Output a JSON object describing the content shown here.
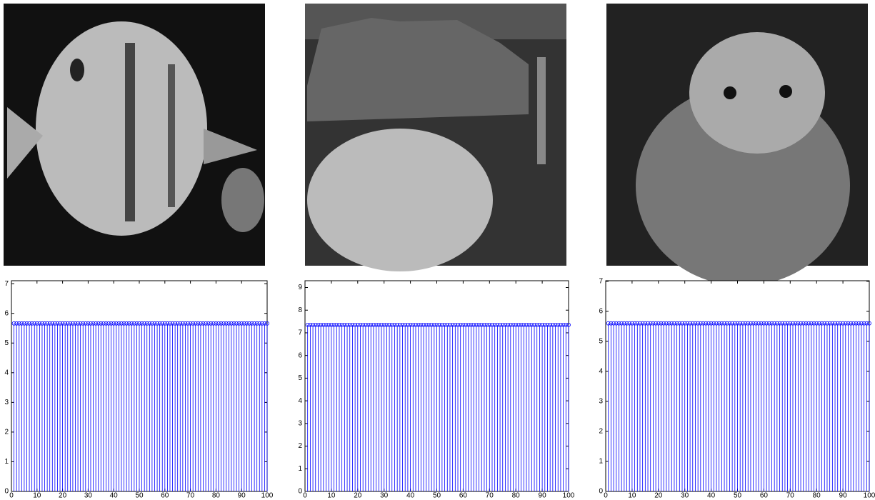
{
  "chart_data": [
    {
      "type": "stem",
      "color": "#0000ff",
      "x": [
        1,
        2,
        3,
        4,
        5,
        6,
        7,
        8,
        9,
        10,
        11,
        12,
        13,
        14,
        15,
        16,
        17,
        18,
        19,
        20,
        21,
        22,
        23,
        24,
        25,
        26,
        27,
        28,
        29,
        30,
        31,
        32,
        33,
        34,
        35,
        36,
        37,
        38,
        39,
        40,
        41,
        42,
        43,
        44,
        45,
        46,
        47,
        48,
        49,
        50,
        51,
        52,
        53,
        54,
        55,
        56,
        57,
        58,
        59,
        60,
        61,
        62,
        63,
        64,
        65,
        66,
        67,
        68,
        69,
        70,
        71,
        72,
        73,
        74,
        75,
        76,
        77,
        78,
        79,
        80,
        81,
        82,
        83,
        84,
        85,
        86,
        87,
        88,
        89,
        90,
        91,
        92,
        93,
        94,
        95,
        96,
        97,
        98,
        99,
        100
      ],
      "values": [
        5.66,
        5.66,
        5.66,
        5.66,
        5.66,
        5.66,
        5.66,
        5.66,
        5.66,
        5.66,
        5.66,
        5.66,
        5.66,
        5.66,
        5.66,
        5.66,
        5.66,
        5.66,
        5.66,
        5.66,
        5.66,
        5.66,
        5.66,
        5.66,
        5.66,
        5.66,
        5.66,
        5.66,
        5.66,
        5.66,
        5.66,
        5.66,
        5.66,
        5.66,
        5.66,
        5.66,
        5.66,
        5.66,
        5.66,
        5.66,
        5.66,
        5.66,
        5.66,
        5.66,
        5.66,
        5.66,
        5.66,
        5.66,
        5.66,
        5.66,
        5.66,
        5.66,
        5.66,
        5.66,
        5.66,
        5.66,
        5.66,
        5.66,
        5.66,
        5.66,
        5.66,
        5.66,
        5.66,
        5.66,
        5.66,
        5.66,
        5.66,
        5.66,
        5.66,
        5.66,
        5.66,
        5.66,
        5.66,
        5.66,
        5.66,
        5.66,
        5.66,
        5.66,
        5.66,
        5.66,
        5.66,
        5.66,
        5.66,
        5.66,
        5.66,
        5.66,
        5.66,
        5.66,
        5.66,
        5.66,
        5.66,
        5.66,
        5.66,
        5.66,
        5.66,
        5.66,
        5.66,
        5.66,
        5.66,
        5.66
      ],
      "xlim": [
        0,
        100
      ],
      "xticks": [
        0,
        10,
        20,
        30,
        40,
        50,
        60,
        70,
        80,
        90,
        100
      ],
      "ylim": [
        0,
        7.1
      ],
      "yticks": [
        0,
        1,
        2,
        3,
        4,
        5,
        6,
        7
      ]
    },
    {
      "type": "stem",
      "color": "#0000ff",
      "x": [
        1,
        2,
        3,
        4,
        5,
        6,
        7,
        8,
        9,
        10,
        11,
        12,
        13,
        14,
        15,
        16,
        17,
        18,
        19,
        20,
        21,
        22,
        23,
        24,
        25,
        26,
        27,
        28,
        29,
        30,
        31,
        32,
        33,
        34,
        35,
        36,
        37,
        38,
        39,
        40,
        41,
        42,
        43,
        44,
        45,
        46,
        47,
        48,
        49,
        50,
        51,
        52,
        53,
        54,
        55,
        56,
        57,
        58,
        59,
        60,
        61,
        62,
        63,
        64,
        65,
        66,
        67,
        68,
        69,
        70,
        71,
        72,
        73,
        74,
        75,
        76,
        77,
        78,
        79,
        80,
        81,
        82,
        83,
        84,
        85,
        86,
        87,
        88,
        89,
        90,
        91,
        92,
        93,
        94,
        95,
        96,
        97,
        98,
        99,
        100
      ],
      "values": [
        7.35,
        7.35,
        7.35,
        7.35,
        7.35,
        7.35,
        7.35,
        7.35,
        7.35,
        7.35,
        7.35,
        7.35,
        7.35,
        7.35,
        7.35,
        7.35,
        7.35,
        7.35,
        7.35,
        7.35,
        7.35,
        7.35,
        7.35,
        7.35,
        7.35,
        7.35,
        7.35,
        7.35,
        7.35,
        7.35,
        7.35,
        7.35,
        7.35,
        7.35,
        7.35,
        7.35,
        7.35,
        7.35,
        7.35,
        7.35,
        7.35,
        7.35,
        7.35,
        7.35,
        7.35,
        7.35,
        7.35,
        7.35,
        7.35,
        7.35,
        7.35,
        7.35,
        7.35,
        7.35,
        7.35,
        7.35,
        7.35,
        7.35,
        7.35,
        7.35,
        7.35,
        7.35,
        7.35,
        7.35,
        7.35,
        7.35,
        7.35,
        7.35,
        7.35,
        7.35,
        7.35,
        7.35,
        7.35,
        7.35,
        7.35,
        7.35,
        7.35,
        7.35,
        7.35,
        7.35,
        7.35,
        7.35,
        7.35,
        7.35,
        7.35,
        7.35,
        7.35,
        7.35,
        7.35,
        7.35,
        7.35,
        7.35,
        7.35,
        7.35,
        7.35,
        7.35,
        7.35,
        7.35,
        7.35,
        7.35
      ],
      "xlim": [
        0,
        100
      ],
      "xticks": [
        0,
        10,
        20,
        30,
        40,
        50,
        60,
        70,
        80,
        90,
        100
      ],
      "ylim": [
        0,
        9.3
      ],
      "yticks": [
        0,
        1,
        2,
        3,
        4,
        5,
        6,
        7,
        8,
        9
      ]
    },
    {
      "type": "stem",
      "color": "#0000ff",
      "x": [
        1,
        2,
        3,
        4,
        5,
        6,
        7,
        8,
        9,
        10,
        11,
        12,
        13,
        14,
        15,
        16,
        17,
        18,
        19,
        20,
        21,
        22,
        23,
        24,
        25,
        26,
        27,
        28,
        29,
        30,
        31,
        32,
        33,
        34,
        35,
        36,
        37,
        38,
        39,
        40,
        41,
        42,
        43,
        44,
        45,
        46,
        47,
        48,
        49,
        50,
        51,
        52,
        53,
        54,
        55,
        56,
        57,
        58,
        59,
        60,
        61,
        62,
        63,
        64,
        65,
        66,
        67,
        68,
        69,
        70,
        71,
        72,
        73,
        74,
        75,
        76,
        77,
        78,
        79,
        80,
        81,
        82,
        83,
        84,
        85,
        86,
        87,
        88,
        89,
        90,
        91,
        92,
        93,
        94,
        95,
        96,
        97,
        98,
        99,
        100
      ],
      "values": [
        5.6,
        5.6,
        5.6,
        5.6,
        5.6,
        5.6,
        5.6,
        5.6,
        5.6,
        5.6,
        5.6,
        5.6,
        5.6,
        5.6,
        5.6,
        5.6,
        5.6,
        5.6,
        5.6,
        5.6,
        5.6,
        5.6,
        5.6,
        5.6,
        5.6,
        5.6,
        5.6,
        5.6,
        5.6,
        5.6,
        5.6,
        5.6,
        5.6,
        5.6,
        5.6,
        5.6,
        5.6,
        5.6,
        5.6,
        5.6,
        5.6,
        5.6,
        5.6,
        5.6,
        5.6,
        5.6,
        5.6,
        5.6,
        5.6,
        5.6,
        5.6,
        5.6,
        5.6,
        5.6,
        5.6,
        5.6,
        5.6,
        5.6,
        5.6,
        5.6,
        5.6,
        5.6,
        5.6,
        5.6,
        5.6,
        5.6,
        5.6,
        5.6,
        5.6,
        5.6,
        5.6,
        5.6,
        5.6,
        5.6,
        5.6,
        5.6,
        5.6,
        5.6,
        5.6,
        5.6,
        5.6,
        5.6,
        5.6,
        5.6,
        5.6,
        5.6,
        5.6,
        5.6,
        5.6,
        5.6,
        5.6,
        5.6,
        5.6,
        5.6,
        5.6,
        5.6,
        5.6,
        5.6,
        5.6,
        5.6
      ],
      "xlim": [
        0,
        100
      ],
      "xticks": [
        0,
        10,
        20,
        30,
        40,
        50,
        60,
        70,
        80,
        90,
        100
      ],
      "ylim": [
        0,
        7.02
      ],
      "yticks": [
        0,
        1,
        2,
        3,
        4,
        5,
        6,
        7
      ]
    }
  ]
}
